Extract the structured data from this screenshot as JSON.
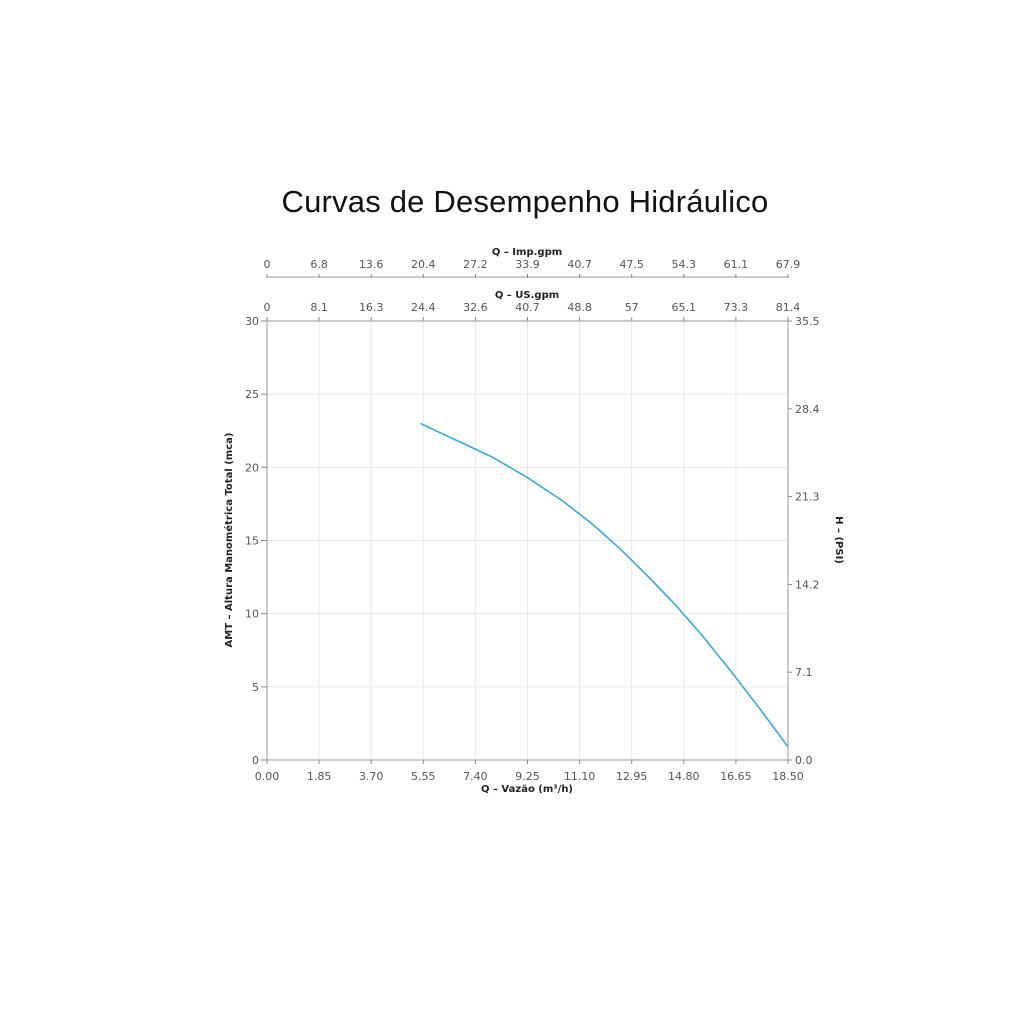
{
  "chart_data": {
    "type": "line",
    "title": "Curvas de Desempenho Hidráulico",
    "xlabel": "Q – Vazão (m³/h)",
    "ylabel": "AMT – Altura Manométrica Total (mca)",
    "y2label": "H – (PSI)",
    "top_axis_1_label": "Q – Imp.gpm",
    "top_axis_2_label": "Q – US.gpm",
    "xlim": [
      0,
      18.5
    ],
    "ylim": [
      0,
      30
    ],
    "x_ticks": [
      "0.00",
      "1.85",
      "3.70",
      "5.55",
      "7.40",
      "9.25",
      "11.10",
      "12.95",
      "14.80",
      "16.65",
      "18.50"
    ],
    "imp_gpm_ticks": [
      "0",
      "6.8",
      "13.6",
      "20.4",
      "27.2",
      "33.9",
      "40.7",
      "47.5",
      "54.3",
      "61.1",
      "67.9"
    ],
    "us_gpm_ticks": [
      "0",
      "8.1",
      "16.3",
      "24.4",
      "32.6",
      "40.7",
      "48.8",
      "57",
      "65.1",
      "73.3",
      "81.4"
    ],
    "y_ticks": [
      "0",
      "5",
      "10",
      "15",
      "20",
      "25",
      "30"
    ],
    "psi_ticks": [
      "0.0",
      "7.1",
      "14.2",
      "21.3",
      "28.4",
      "35.5"
    ],
    "grid": true,
    "line_color": "#3aa8d8",
    "series": [
      {
        "x": [
          5.45,
          6.0,
          7.0,
          8.0,
          9.25,
          10.5,
          11.5,
          12.5,
          13.5,
          14.5,
          15.5,
          16.5,
          17.5,
          18.5
        ],
        "values": [
          23.0,
          22.5,
          21.6,
          20.7,
          19.3,
          17.7,
          16.2,
          14.5,
          12.6,
          10.6,
          8.4,
          6.0,
          3.5,
          0.9
        ]
      }
    ]
  }
}
